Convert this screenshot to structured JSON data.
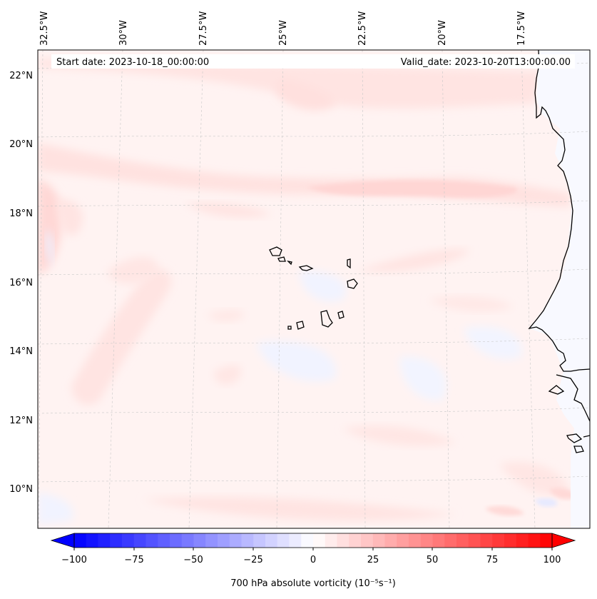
{
  "map": {
    "start_date_label": "Start date: 2023-10-18_00:00:00",
    "valid_date_label": "Valid_date: 2023-10-20T13:00:00.00",
    "lon_labels": [
      "32.5°W",
      "30°W",
      "27.5°W",
      "25°W",
      "22.5°W",
      "20°W",
      "17.5°W"
    ],
    "lat_labels": [
      "22°N",
      "20°N",
      "18°N",
      "16°N",
      "14°N",
      "12°N",
      "10°N"
    ],
    "field": "700 hPa absolute vorticity",
    "units_note": "shaded, mostly weak positive vorticity (light red) over ocean with a stronger band near 18–19°N; Cape Verde islands and West African coast outlined"
  },
  "colorbar": {
    "label": "700 hPa absolute vorticity (10⁻⁵s⁻¹)",
    "ticks": [
      "−100",
      "−75",
      "−50",
      "−25",
      "0",
      "25",
      "50",
      "75",
      "100"
    ],
    "min": -100,
    "max": 100,
    "step": 5,
    "colormap": "bwr",
    "extend": "both"
  },
  "colors": {
    "land_outline": "#000000",
    "grid": "#c8c8c8",
    "negative": "#0000ff",
    "positive": "#ff0000"
  }
}
